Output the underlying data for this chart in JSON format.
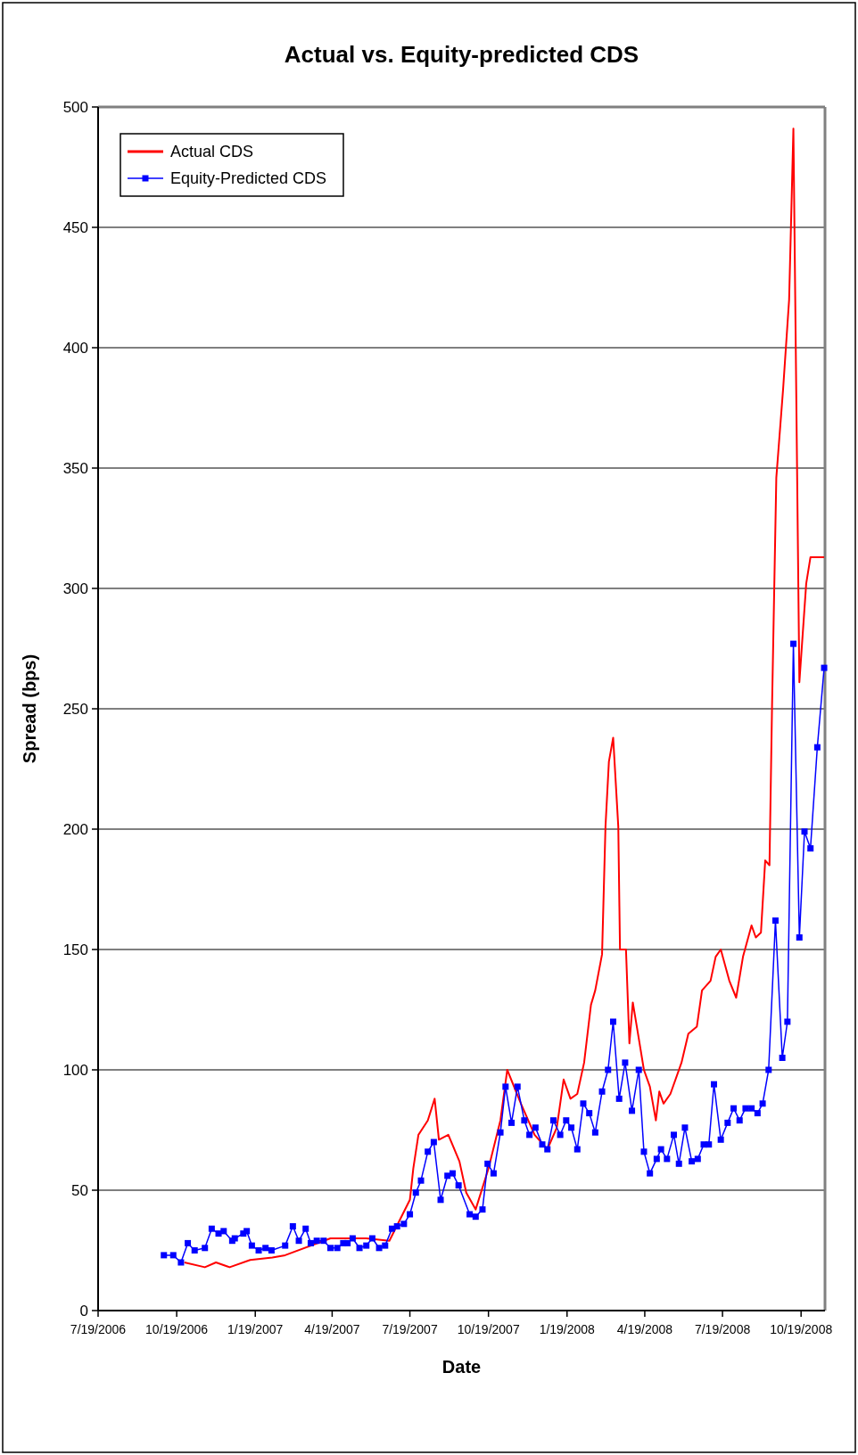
{
  "chart_data": {
    "type": "line",
    "title": "Actual vs. Equity-predicted CDS",
    "xlabel": "Date",
    "ylabel": "Spread (bps)",
    "xlim": [
      "2006-07-19",
      "2008-11-16"
    ],
    "xticks": [
      {
        "value": "2006-07-19",
        "label": "7/19/2006"
      },
      {
        "value": "2006-10-19",
        "label": "10/19/2006"
      },
      {
        "value": "2007-01-19",
        "label": "1/19/2007"
      },
      {
        "value": "2007-04-19",
        "label": "4/19/2007"
      },
      {
        "value": "2007-07-19",
        "label": "7/19/2007"
      },
      {
        "value": "2007-10-19",
        "label": "10/19/2007"
      },
      {
        "value": "2008-01-19",
        "label": "1/19/2008"
      },
      {
        "value": "2008-04-19",
        "label": "4/19/2008"
      },
      {
        "value": "2008-07-19",
        "label": "7/19/2008"
      },
      {
        "value": "2008-10-19",
        "label": "10/19/2008"
      }
    ],
    "ylim": [
      0,
      500
    ],
    "yticks": [
      0,
      50,
      100,
      150,
      200,
      250,
      300,
      350,
      400,
      450,
      500
    ],
    "grid": "y",
    "legend": "top left",
    "series": [
      {
        "name": "Actual CDS",
        "color": "#ff0000",
        "marker": "none",
        "x": [
          "2006-10-28",
          "2006-11-21",
          "2006-12-04",
          "2006-12-20",
          "2007-01-13",
          "2007-02-08",
          "2007-02-23",
          "2007-04-17",
          "2007-05-29",
          "2007-06-25",
          "2007-07-19",
          "2007-07-23",
          "2007-07-29",
          "2007-08-09",
          "2007-08-17",
          "2007-08-22",
          "2007-09-02",
          "2007-09-15",
          "2007-09-23",
          "2007-10-04",
          "2007-10-19",
          "2007-11-02",
          "2007-11-10",
          "2007-11-26",
          "2007-12-12",
          "2007-12-27",
          "2008-01-07",
          "2008-01-15",
          "2008-01-23",
          "2008-01-31",
          "2008-02-08",
          "2008-02-16",
          "2008-02-21",
          "2008-02-29",
          "2008-03-04",
          "2008-03-08",
          "2008-03-13",
          "2008-03-19",
          "2008-03-21",
          "2008-03-28",
          "2008-04-01",
          "2008-04-05",
          "2008-04-12",
          "2008-04-18",
          "2008-04-25",
          "2008-05-02",
          "2008-05-06",
          "2008-05-11",
          "2008-05-19",
          "2008-06-01",
          "2008-06-09",
          "2008-06-19",
          "2008-06-25",
          "2008-07-05",
          "2008-07-11",
          "2008-07-17",
          "2008-07-27",
          "2008-08-04",
          "2008-08-12",
          "2008-08-22",
          "2008-08-27",
          "2008-09-02",
          "2008-09-07",
          "2008-09-12",
          "2008-09-15",
          "2008-09-20",
          "2008-09-28",
          "2008-10-05",
          "2008-10-10",
          "2008-10-17",
          "2008-10-25",
          "2008-10-30",
          "2008-11-15"
        ],
        "values": [
          20,
          18,
          20,
          18,
          21,
          22,
          23,
          30,
          30,
          29,
          46,
          59,
          73,
          79,
          88,
          71,
          73,
          62,
          49,
          42,
          59,
          79,
          100,
          86,
          73,
          67,
          76,
          96,
          88,
          90,
          103,
          127,
          133,
          148,
          201,
          228,
          238,
          201,
          150,
          150,
          111,
          128,
          113,
          100,
          93,
          79,
          91,
          86,
          90,
          103,
          115,
          118,
          133,
          137,
          147,
          150,
          137,
          130,
          147,
          160,
          155,
          157,
          187,
          185,
          251,
          346,
          383,
          420,
          491,
          261,
          302,
          313,
          313
        ]
      },
      {
        "name": "Equity-Predicted CDS",
        "color": "#0000ff",
        "marker": "square",
        "x": [
          "2006-10-04",
          "2006-10-15",
          "2006-10-24",
          "2006-11-01",
          "2006-11-09",
          "2006-11-21",
          "2006-11-29",
          "2006-12-07",
          "2006-12-13",
          "2006-12-23",
          "2006-12-26",
          "2007-01-05",
          "2007-01-09",
          "2007-01-15",
          "2007-01-23",
          "2007-01-31",
          "2007-02-07",
          "2007-02-23",
          "2007-03-04",
          "2007-03-11",
          "2007-03-19",
          "2007-03-25",
          "2007-04-01",
          "2007-04-09",
          "2007-04-17",
          "2007-04-25",
          "2007-05-02",
          "2007-05-07",
          "2007-05-13",
          "2007-05-21",
          "2007-05-29",
          "2007-06-05",
          "2007-06-13",
          "2007-06-20",
          "2007-06-28",
          "2007-07-04",
          "2007-07-12",
          "2007-07-19",
          "2007-07-26",
          "2007-08-01",
          "2007-08-09",
          "2007-08-16",
          "2007-08-24",
          "2007-09-01",
          "2007-09-07",
          "2007-09-14",
          "2007-09-27",
          "2007-10-04",
          "2007-10-12",
          "2007-10-18",
          "2007-10-25",
          "2007-11-02",
          "2007-11-08",
          "2007-11-15",
          "2007-11-22",
          "2007-11-30",
          "2007-12-06",
          "2007-12-13",
          "2007-12-21",
          "2007-12-27",
          "2008-01-03",
          "2008-01-11",
          "2008-01-18",
          "2008-01-24",
          "2008-01-31",
          "2008-02-07",
          "2008-02-14",
          "2008-02-21",
          "2008-02-29",
          "2008-03-07",
          "2008-03-13",
          "2008-03-20",
          "2008-03-27",
          "2008-04-04",
          "2008-04-12",
          "2008-04-18",
          "2008-04-25",
          "2008-05-03",
          "2008-05-08",
          "2008-05-15",
          "2008-05-23",
          "2008-05-29",
          "2008-06-05",
          "2008-06-13",
          "2008-06-20",
          "2008-06-27",
          "2008-07-03",
          "2008-07-09",
          "2008-07-17",
          "2008-07-25",
          "2008-08-01",
          "2008-08-08",
          "2008-08-15",
          "2008-08-22",
          "2008-08-29",
          "2008-09-04",
          "2008-09-11",
          "2008-09-19",
          "2008-09-27",
          "2008-10-03",
          "2008-10-10",
          "2008-10-17",
          "2008-10-23",
          "2008-10-30",
          "2008-11-07",
          "2008-11-15"
        ],
        "values": [
          23,
          23,
          20,
          28,
          25,
          26,
          34,
          32,
          33,
          29,
          30,
          32,
          33,
          27,
          25,
          26,
          25,
          27,
          35,
          29,
          34,
          28,
          29,
          29,
          26,
          26,
          28,
          28,
          30,
          26,
          27,
          30,
          26,
          27,
          34,
          35,
          36,
          40,
          49,
          54,
          66,
          70,
          46,
          56,
          57,
          52,
          40,
          39,
          42,
          61,
          57,
          74,
          93,
          78,
          93,
          79,
          73,
          76,
          69,
          67,
          79,
          73,
          79,
          76,
          67,
          86,
          82,
          74,
          91,
          100,
          120,
          88,
          103,
          83,
          100,
          66,
          57,
          63,
          67,
          63,
          73,
          61,
          76,
          62,
          63,
          69,
          69,
          94,
          71,
          78,
          84,
          79,
          84,
          84,
          82,
          86,
          100,
          162,
          105,
          120,
          277,
          155,
          199,
          192,
          234,
          267
        ]
      }
    ]
  }
}
